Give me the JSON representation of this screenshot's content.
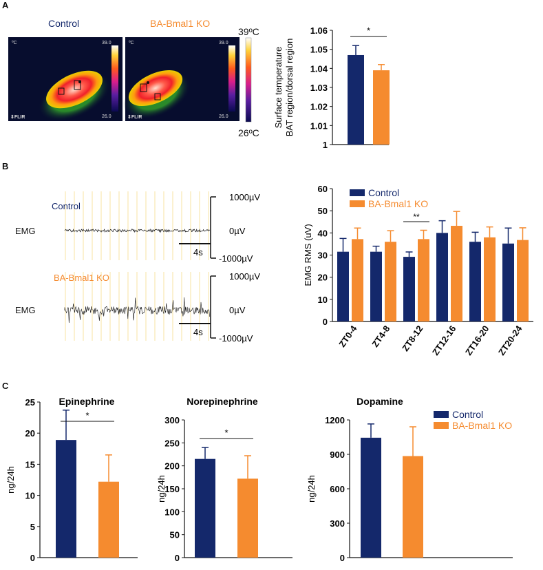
{
  "panels": {
    "A": "A",
    "B": "B",
    "C": "C"
  },
  "colors": {
    "control": "#14286b",
    "ko": "#f58b2f",
    "grid": "#f6dc8a"
  },
  "panelA": {
    "control_label": "Control",
    "ko_label": "BA-Bmal1 KO",
    "cam_unit": "ºC",
    "cam_max": "39.0",
    "cam_min": "26.0",
    "cam_brand": "FLIR",
    "scale_max": "39ºC",
    "scale_min": "26ºC"
  },
  "panelB": {
    "control_label": "Control",
    "ko_label": "BA-Bmal1 KO",
    "emg": "EMG",
    "scale_top": "1000µV",
    "scale_mid": "0µV",
    "scale_bot": "-1000µV",
    "time_bar": "4s"
  },
  "chart_data": [
    {
      "id": "temp",
      "type": "bar",
      "categories": [
        "Control",
        "BA-Bmal1 KO"
      ],
      "values": [
        1.047,
        1.039
      ],
      "errors": [
        0.005,
        0.003
      ],
      "ylabel_lines": [
        "Surface temperature",
        "BAT region/dorsal region"
      ],
      "ylim": [
        1,
        1.06
      ],
      "ticks": [
        "1",
        "1.01",
        "1.02",
        "1.03",
        "1.04",
        "1.05",
        "1.06"
      ],
      "significance": "*"
    },
    {
      "id": "emg",
      "type": "bar",
      "categories": [
        "ZT0-4",
        "ZT4-8",
        "ZT8-12",
        "ZT12-16",
        "ZT16-20",
        "ZT20-24"
      ],
      "series": [
        {
          "name": "Control",
          "values": [
            31.5,
            31.5,
            29.2,
            40,
            36,
            35.2
          ],
          "errors": [
            6,
            2.5,
            2.2,
            5.5,
            4.3,
            7
          ]
        },
        {
          "name": "BA-Bmal1 KO",
          "values": [
            37.2,
            36,
            37.2,
            43.2,
            38,
            36.8
          ],
          "errors": [
            5,
            5,
            4,
            6.5,
            4.7,
            5.5
          ]
        }
      ],
      "ylabel": "EMG RMS (uV)",
      "ylim": [
        0,
        60
      ],
      "ticks": [
        "0",
        "10",
        "20",
        "30",
        "40",
        "50",
        "60"
      ],
      "significance": "**"
    },
    {
      "id": "epi",
      "type": "bar",
      "title": "Epinephrine",
      "categories": [
        "Control",
        "BA-Bmal1 KO"
      ],
      "values": [
        18.9,
        12.2
      ],
      "errors": [
        4.8,
        4.3
      ],
      "ylabel": "ng/24h",
      "ylim": [
        0,
        25
      ],
      "ticks": [
        "0",
        "5",
        "10",
        "15",
        "20",
        "25"
      ],
      "significance": "*"
    },
    {
      "id": "nor",
      "type": "bar",
      "title": "Norepinephrine",
      "categories": [
        "Control",
        "BA-Bmal1 KO"
      ],
      "values": [
        215,
        172
      ],
      "errors": [
        25,
        50
      ],
      "ylabel": "ng/24h",
      "ylim": [
        0,
        300
      ],
      "ticks": [
        "0",
        "50",
        "100",
        "150",
        "200",
        "250",
        "300"
      ],
      "significance": "*"
    },
    {
      "id": "dop",
      "type": "bar",
      "title": "Dopamine",
      "categories": [
        "Control",
        "BA-Bmal1 KO"
      ],
      "values": [
        1045,
        885
      ],
      "errors": [
        120,
        255
      ],
      "ylabel": "ng/24h",
      "ylim": [
        0,
        1200
      ],
      "ticks": [
        "0",
        "300",
        "600",
        "900",
        "1200"
      ],
      "legend": [
        "Control",
        "BA-Bmal1 KO"
      ]
    }
  ]
}
